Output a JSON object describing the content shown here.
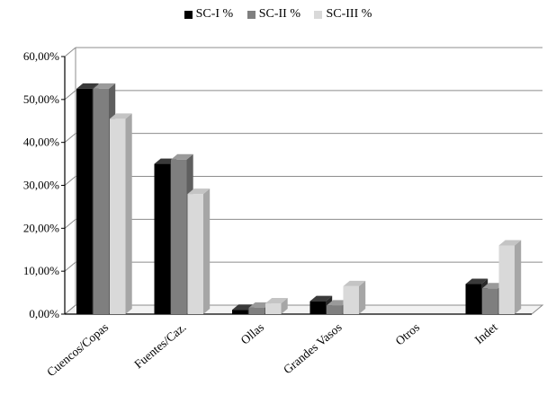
{
  "chart_data": {
    "type": "bar",
    "categories": [
      "Cuencos/Copas",
      "Fuentes/Caz.",
      "Ollas",
      "Grandes Vasos",
      "Otros",
      "Indet"
    ],
    "series": [
      {
        "name": "SC-I %",
        "color": "#000000",
        "side_color": "#2a2a2a",
        "top_color": "#3a3a3a",
        "values": [
          52.5,
          35.0,
          1.0,
          3.0,
          0.0,
          7.0
        ]
      },
      {
        "name": "SC-II %",
        "color": "#7f7f7f",
        "side_color": "#5f5f5f",
        "top_color": "#9a9a9a",
        "values": [
          52.5,
          36.0,
          1.5,
          2.0,
          0.0,
          6.0
        ]
      },
      {
        "name": "SC-III %",
        "color": "#d9d9d9",
        "side_color": "#a6a6a6",
        "top_color": "#c4c4c4",
        "values": [
          45.5,
          28.0,
          2.5,
          6.5,
          0.0,
          16.0
        ]
      }
    ],
    "y_ticks": [
      "0,00%",
      "10,00%",
      "20,00%",
      "30,00%",
      "40,00%",
      "50,00%",
      "60,00%"
    ],
    "ylim": [
      0,
      60
    ],
    "grid": true,
    "legend_position": "top-center",
    "title": "",
    "xlabel": "",
    "ylabel": ""
  }
}
